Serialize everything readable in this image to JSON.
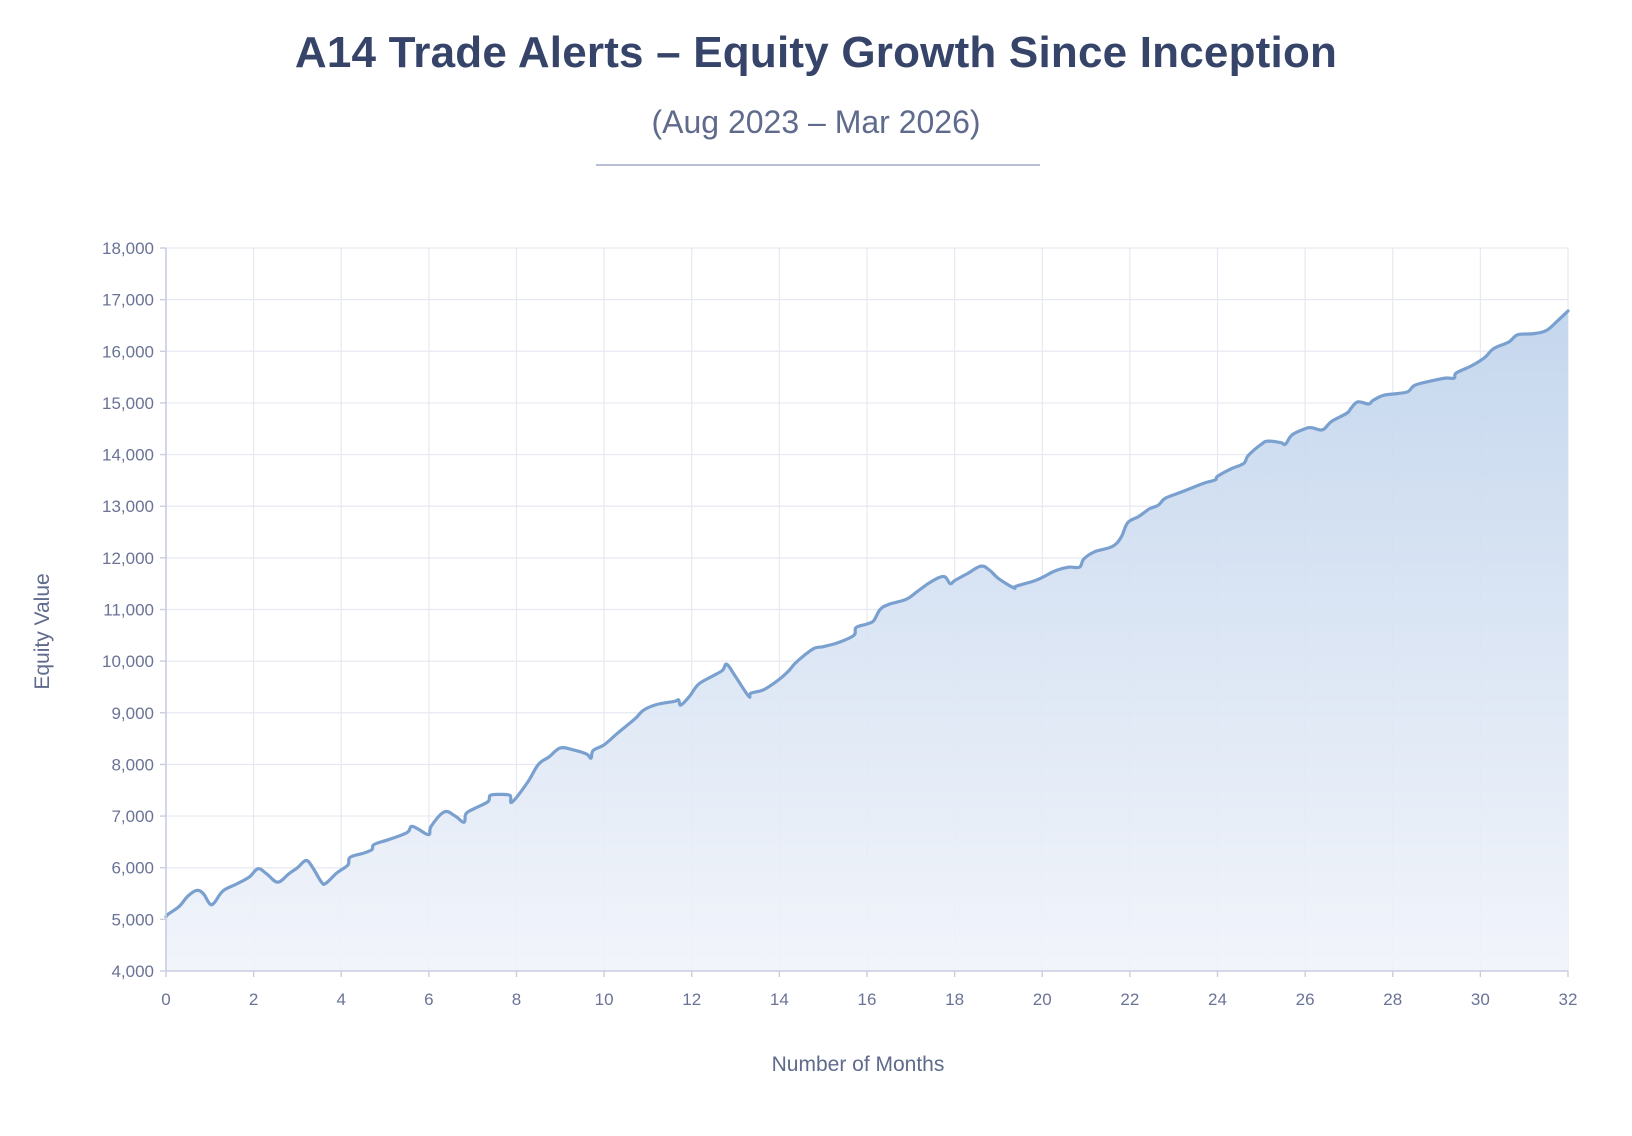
{
  "header": {
    "title": "A14 Trade Alerts – Equity Growth Since Inception",
    "subtitle": "(Aug 2023 – Mar 2026)"
  },
  "colors": {
    "title": "#36446a",
    "line": "#7aa0cf",
    "fill_top": "#c2d5ed",
    "fill_bottom": "#f0f3fa",
    "grid": "#e6e9f1",
    "axis": "#c9cde0",
    "tick_text": "#6a7396"
  },
  "chart_data": {
    "type": "area",
    "title": "A14 Trade Alerts – Equity Growth Since Inception",
    "subtitle": "(Aug 2023 – Mar 2026)",
    "xlabel": "Number of Months",
    "ylabel": "Equity Value",
    "xlim": [
      0,
      32
    ],
    "ylim": [
      4000,
      18000
    ],
    "xticks": [
      0,
      2,
      4,
      6,
      8,
      10,
      12,
      14,
      16,
      18,
      20,
      22,
      24,
      26,
      28,
      30,
      32
    ],
    "yticks": [
      4000,
      5000,
      6000,
      7000,
      8000,
      9000,
      10000,
      11000,
      12000,
      13000,
      14000,
      15000,
      16000,
      17000,
      18000
    ],
    "ytick_labels": [
      "4,000",
      "5,000",
      "6,000",
      "7,000",
      "8,000",
      "9,000",
      "10,000",
      "11,000",
      "12,000",
      "13,000",
      "14,000",
      "15,000",
      "16,000",
      "17,000",
      "18,000"
    ],
    "grid": true,
    "legend": "none",
    "series": [
      {
        "x": [
          0,
          0.05,
          0.3,
          0.5,
          0.7,
          0.85,
          1.0,
          1.1,
          1.3,
          1.6,
          1.9,
          2.1,
          2.3,
          2.55,
          2.8,
          3.0,
          3.2,
          3.35,
          3.55,
          3.65,
          3.9,
          4.15,
          4.2,
          4.5,
          4.7,
          4.75,
          5.1,
          5.5,
          5.6,
          5.75,
          6.0,
          6.05,
          6.35,
          6.6,
          6.8,
          6.85,
          7.05,
          7.35,
          7.4,
          7.6,
          7.85,
          7.9,
          8.25,
          8.5,
          8.75,
          9.0,
          9.3,
          9.6,
          9.7,
          9.75,
          10.0,
          10.3,
          10.7,
          10.9,
          11.2,
          11.6,
          11.7,
          11.75,
          11.95,
          12.15,
          12.45,
          12.7,
          12.8,
          13.0,
          13.3,
          13.35,
          13.65,
          14.0,
          14.2,
          14.35,
          14.55,
          14.8,
          15.0,
          15.35,
          15.7,
          15.75,
          16.0,
          16.15,
          16.3,
          16.5,
          16.9,
          17.15,
          17.45,
          17.75,
          17.9,
          18.0,
          18.3,
          18.6,
          18.8,
          19.0,
          19.35,
          19.4,
          19.8,
          20.0,
          20.3,
          20.6,
          20.85,
          20.95,
          21.2,
          21.6,
          21.8,
          21.95,
          22.2,
          22.45,
          22.65,
          22.8,
          23.1,
          23.4,
          23.7,
          23.95,
          24.0,
          24.3,
          24.6,
          24.7,
          25.0,
          25.15,
          25.45,
          25.55,
          25.7,
          26.0,
          26.15,
          26.4,
          26.6,
          26.95,
          27.05,
          27.2,
          27.45,
          27.55,
          27.8,
          28.1,
          28.35,
          28.5,
          28.85,
          29.2,
          29.4,
          29.45,
          29.8,
          30.1,
          30.3,
          30.65,
          30.85,
          31.2,
          31.5,
          31.75,
          32.0
        ],
        "y": [
          5050,
          5100,
          5250,
          5450,
          5560,
          5500,
          5300,
          5320,
          5550,
          5680,
          5820,
          5980,
          5880,
          5720,
          5880,
          6000,
          6140,
          6000,
          5720,
          5700,
          5900,
          6050,
          6200,
          6280,
          6350,
          6450,
          6550,
          6680,
          6800,
          6750,
          6640,
          6800,
          7080,
          7000,
          6880,
          7050,
          7150,
          7280,
          7400,
          7420,
          7400,
          7270,
          7650,
          8000,
          8150,
          8320,
          8280,
          8200,
          8120,
          8270,
          8380,
          8600,
          8880,
          9050,
          9160,
          9220,
          9250,
          9150,
          9320,
          9550,
          9700,
          9820,
          9940,
          9700,
          9320,
          9380,
          9450,
          9650,
          9800,
          9950,
          10100,
          10250,
          10280,
          10360,
          10500,
          10650,
          10720,
          10780,
          11000,
          11100,
          11200,
          11350,
          11530,
          11640,
          11500,
          11560,
          11700,
          11840,
          11760,
          11600,
          11420,
          11450,
          11550,
          11620,
          11750,
          11820,
          11820,
          11980,
          12120,
          12220,
          12400,
          12680,
          12800,
          12950,
          13020,
          13150,
          13250,
          13350,
          13450,
          13510,
          13580,
          13720,
          13830,
          13980,
          14200,
          14260,
          14230,
          14200,
          14380,
          14500,
          14520,
          14480,
          14640,
          14800,
          14900,
          15020,
          14980,
          15050,
          15150,
          15180,
          15220,
          15340,
          15420,
          15480,
          15480,
          15580,
          15720,
          15880,
          16050,
          16180,
          16320,
          16340,
          16400,
          16580,
          16780
        ]
      }
    ]
  }
}
